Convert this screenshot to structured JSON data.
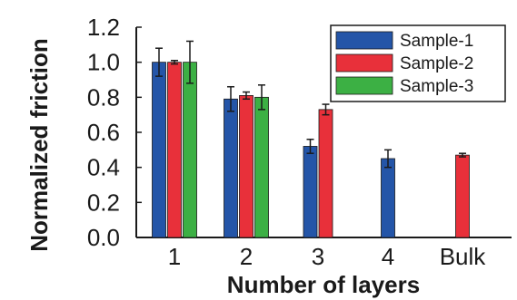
{
  "chart_data": {
    "type": "bar",
    "categories": [
      "1",
      "2",
      "3",
      "4",
      "Bulk"
    ],
    "series": [
      {
        "name": "Sample-1",
        "color": "#2455a8",
        "values": [
          1.0,
          0.79,
          0.52,
          0.45,
          null
        ],
        "errors": [
          0.08,
          0.07,
          0.04,
          0.05,
          null
        ]
      },
      {
        "name": "Sample-2",
        "color": "#e8303a",
        "values": [
          1.0,
          0.81,
          0.73,
          null,
          0.47
        ],
        "errors": [
          0.01,
          0.02,
          0.03,
          null,
          0.01
        ]
      },
      {
        "name": "Sample-3",
        "color": "#3cb044",
        "values": [
          1.0,
          0.8,
          null,
          null,
          null
        ],
        "errors": [
          0.12,
          0.07,
          null,
          null,
          null
        ]
      }
    ],
    "xlabel": "Number of layers",
    "ylabel": "Normalized friction",
    "ylim": [
      0.0,
      1.2
    ],
    "yticks": [
      "0.0",
      "0.2",
      "0.4",
      "0.6",
      "0.8",
      "1.0",
      "1.2"
    ],
    "legend_position": "top-right",
    "grid": false
  }
}
